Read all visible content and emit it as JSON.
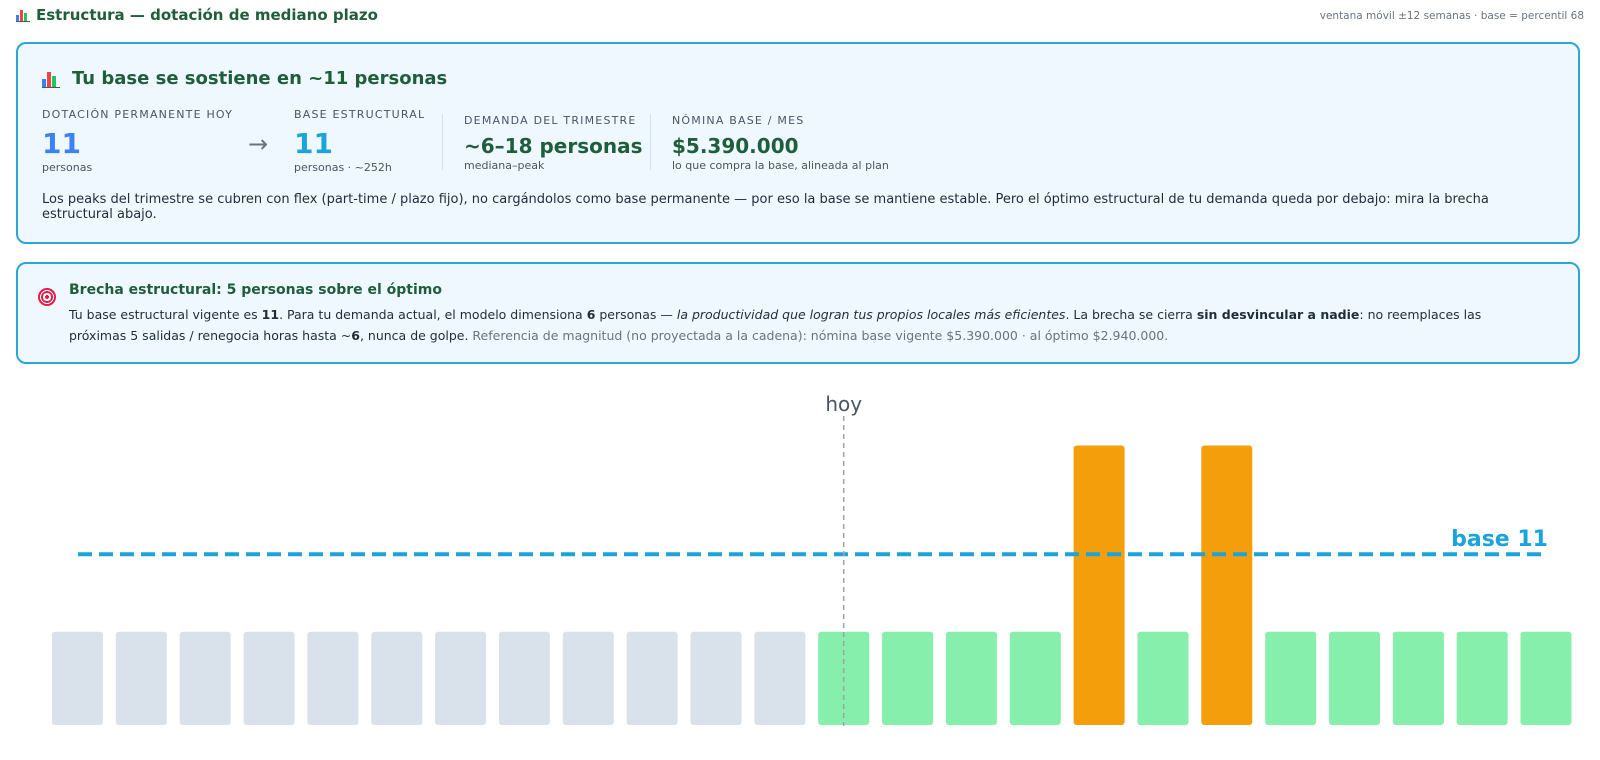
{
  "header": {
    "title": "Estructura — dotación de mediano plazo",
    "meta": "ventana móvil ±12 semanas · base = percentil 68"
  },
  "summary": {
    "heading": "Tu base se sostiene en ~11 personas",
    "metrics": [
      {
        "label": "DOTACIÓN PERMANENTE HOY",
        "value": "11",
        "sub": "personas"
      },
      {
        "label": "BASE ESTRUCTURAL",
        "value": "11",
        "sub": "personas · ~252h"
      },
      {
        "label": "DEMANDA DEL TRIMESTRE",
        "value": "~6–18 personas",
        "sub": "mediana–peak"
      },
      {
        "label": "NÓMINA BASE / MES",
        "value": "$5.390.000",
        "sub": "lo que compra la base, alineada al plan"
      }
    ],
    "arrow": "→",
    "description": "Los peaks del trimestre se cubren con flex (part-time / plazo fijo), no cargándolos como base permanente — por eso la base se mantiene estable. Pero el óptimo estructural de tu demanda queda por debajo: mira la brecha estructural abajo."
  },
  "gap": {
    "title": "Brecha estructural: 5 personas sobre el óptimo",
    "p1": "Tu base estructural vigente es ",
    "b1": "11",
    "p2": ". Para tu demanda actual, el modelo dimensiona ",
    "b2": "6",
    "p3": " personas — ",
    "i1": "la productividad que logran tus propios locales más eficientes",
    "p4": ". La brecha se cierra ",
    "b3": "sin desvincular a nadie",
    "p5": ": no reemplaces las próximas 5 salidas / renegocia horas hasta ~",
    "b4": "6",
    "p6": ", nunca de golpe.",
    "muted": " Referencia de magnitud (no proyectada a la cadena): nómina base vigente $5.390.000 · al óptimo $2.940.000."
  },
  "chart_data": {
    "type": "bar",
    "today_label": "hoy",
    "base_label": "base 11",
    "base_value": 11,
    "ylim": [
      0,
      19
    ],
    "values": [
      6,
      6,
      6,
      6,
      6,
      6,
      6,
      6,
      6,
      6,
      6,
      6,
      6,
      6,
      6,
      6,
      18,
      6,
      18,
      6,
      6,
      6,
      6,
      6
    ],
    "kinds": [
      "past",
      "past",
      "past",
      "past",
      "past",
      "past",
      "past",
      "past",
      "past",
      "past",
      "past",
      "past",
      "future",
      "future",
      "future",
      "future",
      "peak",
      "future",
      "peak",
      "future",
      "future",
      "future",
      "future",
      "future"
    ],
    "today_index": 12,
    "colors": {
      "past": "#d9e1ea",
      "future": "#86efac",
      "peak": "#f59e0b",
      "base": "#1ba4dc",
      "today": "#9ca3af"
    }
  }
}
